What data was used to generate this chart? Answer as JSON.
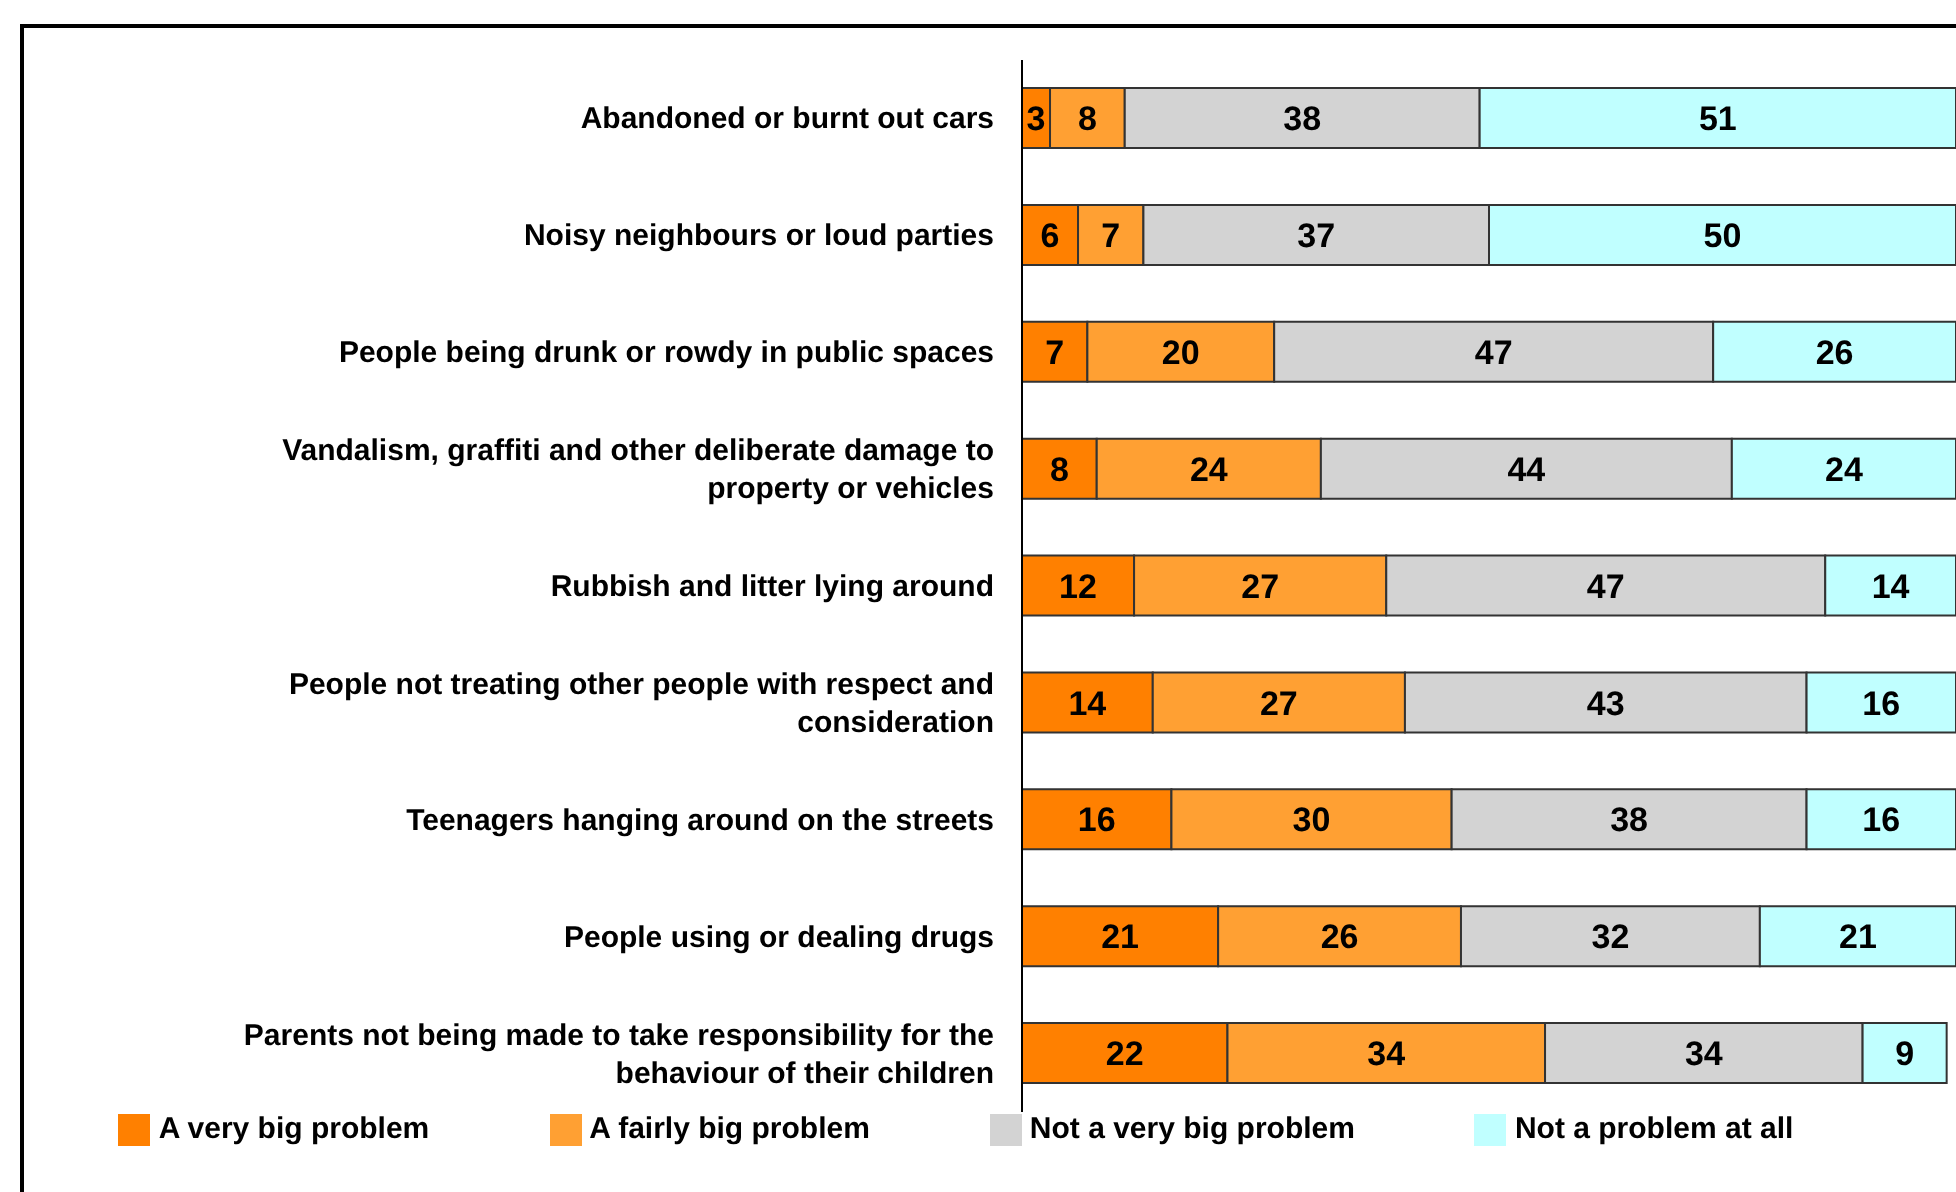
{
  "chart_data": {
    "type": "bar",
    "orientation": "horizontal",
    "stacked": true,
    "data_labels": true,
    "legend": "bottom",
    "grid": false,
    "xlim": [
      0,
      100
    ],
    "categories": [
      "Abandoned or burnt out cars",
      "Noisy neighbours or loud parties",
      "People being drunk or rowdy in public spaces",
      "Vandalism, graffiti and other deliberate damage to property or vehicles",
      "Rubbish and litter lying around",
      "People not treating other people with respect and consideration",
      "Teenagers hanging around on the streets",
      "People using or dealing drugs",
      "Parents not being made to take responsibility for the behaviour of their children"
    ],
    "series": [
      {
        "name": "A very big problem",
        "color": "#ff8000",
        "values": [
          3,
          6,
          7,
          8,
          12,
          14,
          16,
          21,
          22
        ]
      },
      {
        "name": "A fairly big problem",
        "color": "#ffa033",
        "values": [
          8,
          7,
          20,
          24,
          27,
          27,
          30,
          26,
          34
        ]
      },
      {
        "name": "Not a very big problem",
        "color": "#d3d3d3",
        "values": [
          38,
          37,
          47,
          44,
          47,
          43,
          38,
          32,
          34
        ]
      },
      {
        "name": "Not a problem at all",
        "color": "#c0ffff",
        "values": [
          51,
          50,
          26,
          24,
          14,
          16,
          16,
          21,
          9
        ]
      }
    ]
  }
}
